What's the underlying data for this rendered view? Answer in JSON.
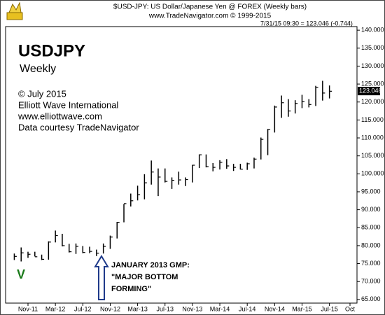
{
  "chart_data": {
    "type": "hlc",
    "header": "$USD-JPY:  US Dollar/Japanese Yen @ FOREX  (Weekly bars)",
    "subheader": "www.TradeNavigator.com © 1999-2015",
    "quote_line": "7/31/15 09:30 = 123.046 (-0.744)",
    "title": "USDJPY",
    "subtitle": "Weekly",
    "notes": [
      "© July 2015",
      "Elliott Wave International",
      "www.elliottwave.com",
      "Data courtesy TradeNavigator"
    ],
    "wave_label": "V",
    "annotation": [
      "JANUARY 2013 GMP:",
      "\"MAJOR BOTTOM",
      "FORMING\""
    ],
    "current_price": 123.046,
    "color": "#000000",
    "categories": [
      null,
      null,
      "Nov-11",
      null,
      null,
      null,
      "Mar-12",
      null,
      null,
      null,
      "Jul-12",
      null,
      null,
      null,
      "Nov-12",
      null,
      null,
      null,
      "Mar-13",
      null,
      null,
      null,
      "Jul-13",
      null,
      null,
      null,
      "Nov-13",
      null,
      null,
      null,
      "Mar-14",
      null,
      null,
      null,
      "Jul-14",
      null,
      null,
      null,
      "Nov-14",
      null,
      null,
      null,
      "Mar-15",
      null,
      null,
      null,
      "Jul-15",
      null,
      null,
      "Oct"
    ],
    "high": [
      77.8,
      79.5,
      78.3,
      78.3,
      77.5,
      81.2,
      84.2,
      83.3,
      80.5,
      80.6,
      79.9,
      79.7,
      78.9,
      80.6,
      82.8,
      86.6,
      91.6,
      94.5,
      96.7,
      99.9,
      103.7,
      101.5,
      101.5,
      99.0,
      100.6,
      99.0,
      102.5,
      105.4,
      105.4,
      103.0,
      103.8,
      104.1,
      102.8,
      102.8,
      103.1,
      104.5,
      110.1,
      112.5,
      119.0,
      121.8,
      120.8,
      120.5,
      122.0,
      120.8,
      124.5,
      125.9,
      124.6,
      null,
      null,
      null
    ],
    "low": [
      76.0,
      75.6,
      76.6,
      77.0,
      76.0,
      76.1,
      80.9,
      79.8,
      78.1,
      77.7,
      77.9,
      77.9,
      77.1,
      77.8,
      79.1,
      82.0,
      86.5,
      90.9,
      92.6,
      92.9,
      97.0,
      93.8,
      97.6,
      95.8,
      97.0,
      96.6,
      97.6,
      101.6,
      101.8,
      100.7,
      101.2,
      101.4,
      100.8,
      101.2,
      101.1,
      101.5,
      104.0,
      105.2,
      111.5,
      115.6,
      115.9,
      116.8,
      118.3,
      118.5,
      118.9,
      120.4,
      121.0,
      null,
      null,
      null
    ],
    "close": [
      77.0,
      78.0,
      77.6,
      76.9,
      76.2,
      81.0,
      82.8,
      80.0,
      78.3,
      79.8,
      78.1,
      78.4,
      77.9,
      79.8,
      82.4,
      86.5,
      91.7,
      92.5,
      94.2,
      97.5,
      100.5,
      99.1,
      97.9,
      98.2,
      98.3,
      98.4,
      102.4,
      105.3,
      102.0,
      101.8,
      103.2,
      102.2,
      101.8,
      101.3,
      102.8,
      104.1,
      109.6,
      112.3,
      118.6,
      119.8,
      117.5,
      119.6,
      120.1,
      119.3,
      124.1,
      122.5,
      123.0,
      null,
      null,
      null
    ],
    "ylim": [
      64,
      141
    ],
    "yticks": [
      {
        "value": 140,
        "label": "140.000"
      },
      {
        "value": 135,
        "label": "135.000"
      },
      {
        "value": 130,
        "label": "130.000"
      },
      {
        "value": 125,
        "label": "125.000"
      },
      {
        "value": 120,
        "label": "120.000"
      },
      {
        "value": 115,
        "label": "115.000"
      },
      {
        "value": 110,
        "label": "110.000"
      },
      {
        "value": 105,
        "label": "105.000"
      },
      {
        "value": 100,
        "label": "100.000"
      },
      {
        "value": 95,
        "label": "95.000"
      },
      {
        "value": 90,
        "label": "90.000"
      },
      {
        "value": 85,
        "label": "85.000"
      },
      {
        "value": 80,
        "label": "80.000"
      },
      {
        "value": 75,
        "label": "75.000"
      },
      {
        "value": 70,
        "label": "70.000"
      },
      {
        "value": 65,
        "label": "65.000"
      }
    ],
    "grid": false
  }
}
